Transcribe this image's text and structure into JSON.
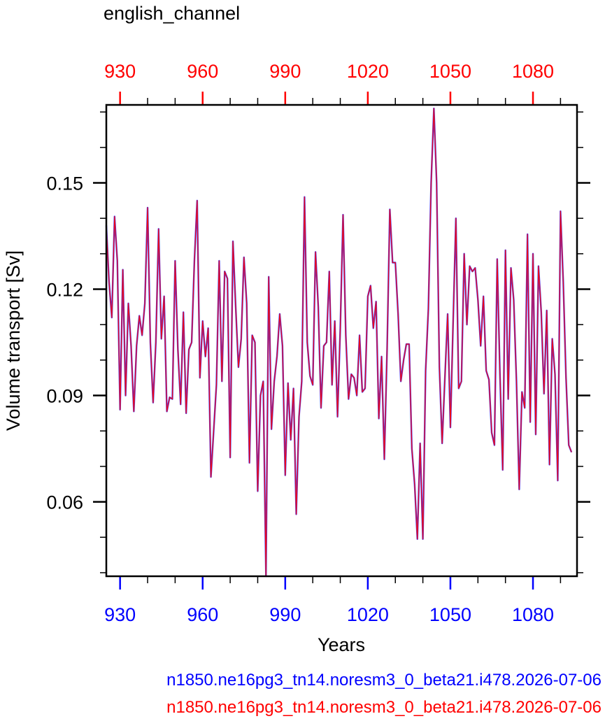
{
  "chart_data": {
    "type": "line",
    "title": "english_channel",
    "xlabel": "Years",
    "ylabel": "Volume transport [Sv]",
    "xlim": [
      925,
      1096
    ],
    "ylim": [
      0.039,
      0.172
    ],
    "x_ticks": [
      930,
      960,
      990,
      1020,
      1050,
      1080
    ],
    "x_tick_labels": [
      "930",
      "960",
      "990",
      "1020",
      "1050",
      "1080"
    ],
    "y_ticks": [
      0.06,
      0.09,
      0.12,
      0.15
    ],
    "y_tick_labels": [
      "0.06",
      "0.09",
      "0.12",
      "0.15"
    ],
    "grid": false,
    "bottom_axis_color": "#0000ff",
    "top_axis_color": "#ff0000",
    "series": [
      {
        "name": "n1850.ne16pg3_tn14.noresm3_0_beta21.i478.2026-07-06",
        "color": "#0000ff",
        "x_start": 925,
        "values": [
          0.138,
          0.122,
          0.112,
          0.1405,
          0.128,
          0.086,
          0.1255,
          0.09,
          0.116,
          0.104,
          0.0855,
          0.104,
          0.1125,
          0.107,
          0.116,
          0.143,
          0.105,
          0.088,
          0.105,
          0.137,
          0.106,
          0.118,
          0.0855,
          0.0895,
          0.089,
          0.128,
          0.103,
          0.0875,
          0.1135,
          0.085,
          0.103,
          0.105,
          0.128,
          0.145,
          0.095,
          0.111,
          0.101,
          0.109,
          0.067,
          0.08,
          0.093,
          0.128,
          0.094,
          0.125,
          0.123,
          0.0725,
          0.1335,
          0.115,
          0.098,
          0.106,
          0.129,
          0.116,
          0.071,
          0.107,
          0.105,
          0.063,
          0.09,
          0.094,
          0.039,
          0.1235,
          0.0805,
          0.094,
          0.101,
          0.113,
          0.104,
          0.0675,
          0.0935,
          0.0775,
          0.092,
          0.0565,
          0.084,
          0.094,
          0.146,
          0.105,
          0.0955,
          0.093,
          0.1305,
          0.115,
          0.0865,
          0.104,
          0.105,
          0.125,
          0.093,
          0.111,
          0.084,
          0.109,
          0.141,
          0.107,
          0.089,
          0.096,
          0.095,
          0.09,
          0.107,
          0.091,
          0.092,
          0.118,
          0.121,
          0.109,
          0.1165,
          0.0835,
          0.101,
          0.072,
          0.103,
          0.1425,
          0.1275,
          0.1275,
          0.113,
          0.094,
          0.1,
          0.1045,
          0.1045,
          0.075,
          0.065,
          0.0495,
          0.0765,
          0.0495,
          0.097,
          0.1145,
          0.15,
          0.171,
          0.15,
          0.098,
          0.0765,
          0.095,
          0.113,
          0.081,
          0.111,
          0.14,
          0.092,
          0.094,
          0.13,
          0.11,
          0.1265,
          0.125,
          0.126,
          0.117,
          0.104,
          0.118,
          0.097,
          0.0945,
          0.0795,
          0.076,
          0.1285,
          0.096,
          0.069,
          0.131,
          0.089,
          0.126,
          0.117,
          0.094,
          0.0635,
          0.091,
          0.0865,
          0.1355,
          0.0825,
          0.13,
          0.079,
          0.1265,
          0.1135,
          0.0905,
          0.114,
          0.0705,
          0.106,
          0.096,
          0.066,
          0.142,
          0.122,
          0.095,
          0.076,
          0.074
        ]
      },
      {
        "name": "n1850.ne16pg3_tn14.noresm3_0_beta21.i478.2026-07-06",
        "color": "#ff0000",
        "x_start": 925,
        "values": [
          0.138,
          0.122,
          0.112,
          0.1405,
          0.128,
          0.086,
          0.1255,
          0.09,
          0.116,
          0.104,
          0.0855,
          0.104,
          0.1125,
          0.107,
          0.116,
          0.143,
          0.105,
          0.088,
          0.105,
          0.137,
          0.106,
          0.118,
          0.0855,
          0.0895,
          0.089,
          0.128,
          0.103,
          0.0875,
          0.1135,
          0.085,
          0.103,
          0.105,
          0.128,
          0.145,
          0.095,
          0.111,
          0.101,
          0.109,
          0.067,
          0.08,
          0.093,
          0.128,
          0.094,
          0.125,
          0.123,
          0.0725,
          0.1335,
          0.115,
          0.098,
          0.106,
          0.129,
          0.116,
          0.071,
          0.107,
          0.105,
          0.063,
          0.09,
          0.094,
          0.039,
          0.1235,
          0.0805,
          0.094,
          0.101,
          0.113,
          0.104,
          0.0675,
          0.0935,
          0.0775,
          0.092,
          0.0565,
          0.084,
          0.094,
          0.146,
          0.105,
          0.0955,
          0.093,
          0.1305,
          0.115,
          0.0865,
          0.104,
          0.105,
          0.125,
          0.093,
          0.111,
          0.084,
          0.109,
          0.141,
          0.107,
          0.089,
          0.096,
          0.095,
          0.09,
          0.107,
          0.091,
          0.092,
          0.118,
          0.121,
          0.109,
          0.1165,
          0.0835,
          0.101,
          0.072,
          0.103,
          0.1425,
          0.1275,
          0.1275,
          0.113,
          0.094,
          0.1,
          0.1045,
          0.1045,
          0.075,
          0.065,
          0.0495,
          0.0765,
          0.0495,
          0.097,
          0.1145,
          0.15,
          0.171,
          0.15,
          0.098,
          0.0765,
          0.095,
          0.113,
          0.081,
          0.111,
          0.14,
          0.092,
          0.094,
          0.13,
          0.11,
          0.1265,
          0.125,
          0.126,
          0.117,
          0.104,
          0.118,
          0.097,
          0.0945,
          0.0795,
          0.076,
          0.1285,
          0.096,
          0.069,
          0.131,
          0.089,
          0.126,
          0.117,
          0.094,
          0.0635,
          0.091,
          0.0865,
          0.1355,
          0.0825,
          0.13,
          0.079,
          0.1265,
          0.1135,
          0.0905,
          0.114,
          0.0705,
          0.106,
          0.096,
          0.066,
          0.142,
          0.122,
          0.095,
          0.076,
          0.074
        ]
      }
    ]
  }
}
